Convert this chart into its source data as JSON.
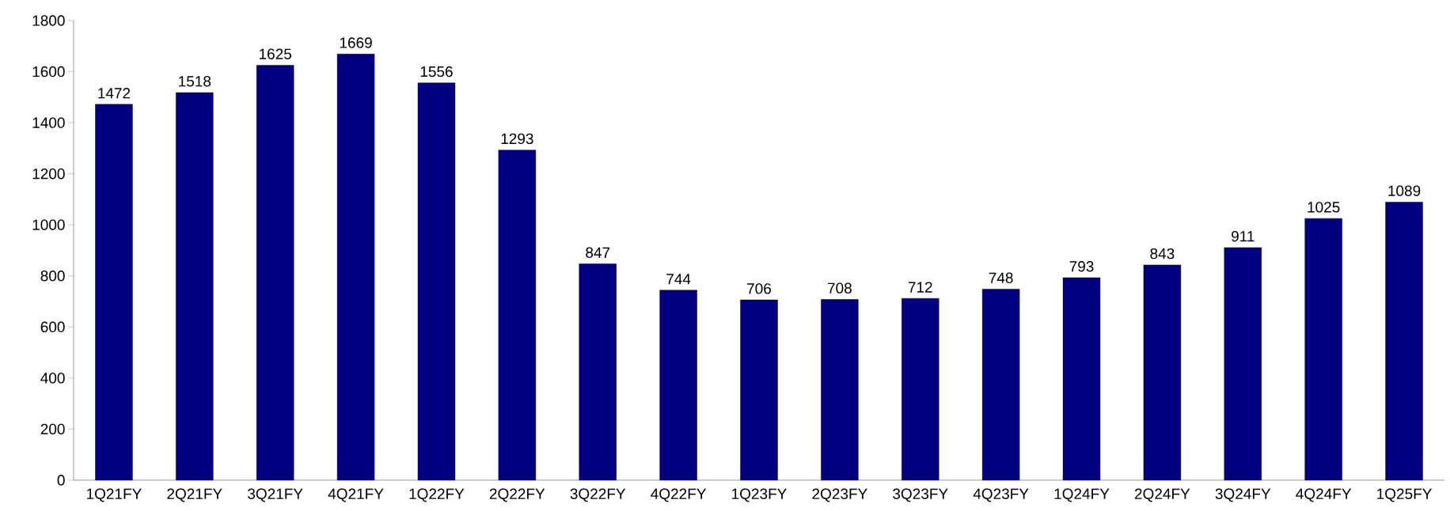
{
  "chart_data": {
    "type": "bar",
    "categories": [
      "1Q21FY",
      "2Q21FY",
      "3Q21FY",
      "4Q21FY",
      "1Q22FY",
      "2Q22FY",
      "3Q22FY",
      "4Q22FY",
      "1Q23FY",
      "2Q23FY",
      "3Q23FY",
      "4Q23FY",
      "1Q24FY",
      "2Q24FY",
      "3Q24FY",
      "4Q24FY",
      "1Q25FY"
    ],
    "values": [
      1472,
      1518,
      1625,
      1669,
      1556,
      1293,
      847,
      744,
      706,
      708,
      712,
      748,
      793,
      843,
      911,
      1025,
      1089
    ],
    "color": "#000080",
    "ylim": [
      0,
      1800
    ],
    "yticks": [
      0,
      200,
      400,
      600,
      800,
      1000,
      1200,
      1400,
      1600,
      1800
    ],
    "data_labels": true,
    "grid": false
  }
}
